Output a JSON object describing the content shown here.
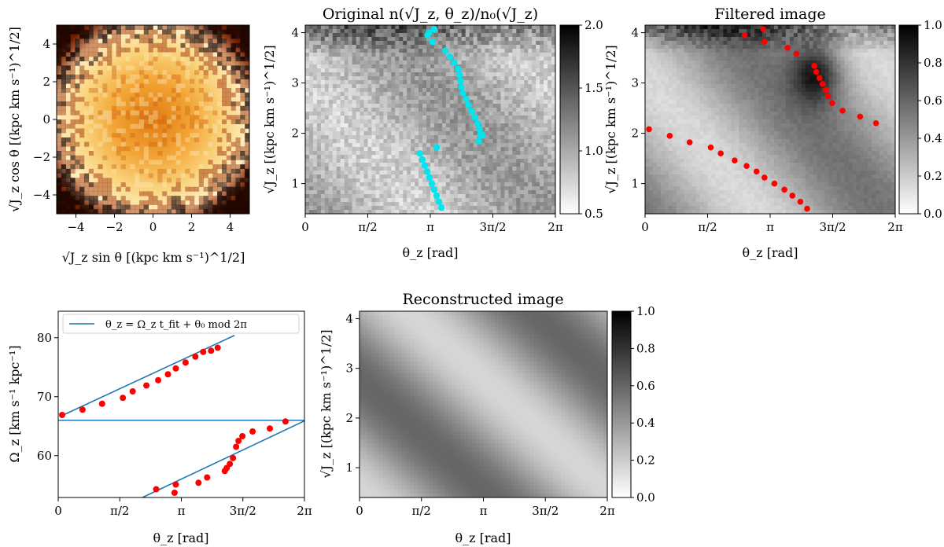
{
  "figure": {
    "panel_a": {
      "xlabel": "√J_z sin θ [(kpc km s⁻¹)^1/2]",
      "ylabel": "√J_z cos θ [(kpc km s⁻¹)^1/2]",
      "xticks": [
        "−4",
        "−2",
        "0",
        "2",
        "4"
      ],
      "yticks": [
        "4",
        "2",
        "0",
        "−2",
        "−4"
      ]
    },
    "panel_b": {
      "title": "Original n(√J_z, θ_z)/n₀(√J_z)",
      "xlabel": "θ_z [rad]",
      "ylabel": "√J_z [(kpc km s⁻¹)^1/2]",
      "xticks": [
        "0",
        "π/2",
        "π",
        "3π/2",
        "2π"
      ],
      "yticks": [
        "1",
        "2",
        "3",
        "4"
      ],
      "cbar_ticks": [
        "2.0",
        "1.5",
        "1.0",
        "0.5"
      ]
    },
    "panel_c": {
      "title": "Filtered image",
      "xlabel": "θ_z [rad]",
      "ylabel": "√J_z [(kpc km s⁻¹)^1/2]",
      "xticks": [
        "0",
        "π/2",
        "π",
        "3π/2",
        "2π"
      ],
      "yticks": [
        "1",
        "2",
        "3",
        "4"
      ],
      "cbar_ticks": [
        "1.0",
        "0.8",
        "0.6",
        "0.4",
        "0.2",
        "0.0"
      ]
    },
    "panel_d": {
      "xlabel": "θ_z [rad]",
      "ylabel": "Ω_z [km s⁻¹ kpc⁻¹]",
      "legend": "θ_z = Ω_z t_fit + θ₀ mod 2π",
      "xticks": [
        "0",
        "π/2",
        "π",
        "3π/2",
        "2π"
      ],
      "yticks": [
        "80",
        "70",
        "60"
      ]
    },
    "panel_e": {
      "title": "Reconstructed image",
      "xlabel": "θ_z [rad]",
      "ylabel": "√J_z [(kpc km s⁻¹)^1/2]",
      "xticks": [
        "0",
        "π/2",
        "π",
        "3π/2",
        "2π"
      ],
      "yticks": [
        "1",
        "2",
        "3",
        "4"
      ],
      "cbar_ticks": [
        "1.0",
        "0.8",
        "0.6",
        "0.4",
        "0.2",
        "0.0"
      ]
    }
  },
  "chart_data": [
    {
      "type": "heatmap",
      "name": "face-on density map",
      "xlim": [
        -5,
        5
      ],
      "ylim": [
        -5,
        5
      ],
      "xlabel": "√J_z sin θ [(kpc km s⁻¹)^1/2]",
      "ylabel": "√J_z cos θ [(kpc km s⁻¹)^1/2]",
      "colormap": "afmhot"
    },
    {
      "type": "heatmap",
      "name": "original",
      "title": "Original n(√J_z, θ_z)/n₀(√J_z)",
      "xlim": [
        0,
        6.2832
      ],
      "ylim": [
        0.4,
        4.15
      ],
      "clim": [
        0.5,
        2.0
      ],
      "overlay_points_color": "#00e5ee",
      "overlay_points": [
        [
          3.07,
          3.95
        ],
        [
          3.24,
          4.07
        ],
        [
          3.11,
          4.0
        ],
        [
          3.2,
          3.82
        ],
        [
          3.52,
          3.64
        ],
        [
          3.64,
          3.52
        ],
        [
          3.74,
          3.4
        ],
        [
          3.84,
          3.28
        ],
        [
          3.88,
          3.16
        ],
        [
          3.9,
          3.04
        ],
        [
          3.92,
          2.92
        ],
        [
          3.96,
          2.8
        ],
        [
          4.04,
          2.68
        ],
        [
          4.1,
          2.56
        ],
        [
          4.18,
          2.44
        ],
        [
          4.26,
          2.32
        ],
        [
          4.33,
          2.2
        ],
        [
          4.38,
          2.08
        ],
        [
          4.4,
          1.96
        ],
        [
          4.45,
          1.96
        ],
        [
          4.36,
          1.84
        ],
        [
          3.3,
          1.72
        ],
        [
          2.88,
          1.6
        ],
        [
          2.94,
          1.48
        ],
        [
          3.0,
          1.36
        ],
        [
          3.06,
          1.24
        ],
        [
          3.12,
          1.12
        ],
        [
          3.18,
          1.0
        ],
        [
          3.24,
          0.88
        ],
        [
          3.3,
          0.76
        ],
        [
          3.36,
          0.64
        ],
        [
          3.42,
          0.52
        ]
      ]
    },
    {
      "type": "heatmap",
      "name": "filtered",
      "title": "Filtered image",
      "xlim": [
        0,
        6.2832
      ],
      "ylim": [
        0.4,
        4.15
      ],
      "clim": [
        0.0,
        1.0
      ],
      "overlay_points_color": "#ff0000",
      "overlay_points": [
        [
          2.97,
          4.07
        ],
        [
          2.5,
          3.95
        ],
        [
          3.0,
          3.82
        ],
        [
          3.58,
          3.7
        ],
        [
          3.8,
          3.58
        ],
        [
          4.25,
          3.34
        ],
        [
          4.3,
          3.22
        ],
        [
          4.38,
          3.1
        ],
        [
          4.46,
          2.98
        ],
        [
          4.54,
          2.86
        ],
        [
          4.6,
          2.74
        ],
        [
          4.7,
          2.6
        ],
        [
          4.96,
          2.45
        ],
        [
          5.4,
          2.33
        ],
        [
          5.8,
          2.2
        ],
        [
          0.1,
          2.08
        ],
        [
          0.62,
          1.95
        ],
        [
          1.12,
          1.82
        ],
        [
          1.65,
          1.72
        ],
        [
          1.9,
          1.6
        ],
        [
          2.25,
          1.46
        ],
        [
          2.55,
          1.35
        ],
        [
          2.8,
          1.24
        ],
        [
          3.0,
          1.12
        ],
        [
          3.25,
          1.0
        ],
        [
          3.5,
          0.88
        ],
        [
          3.7,
          0.76
        ],
        [
          3.9,
          0.64
        ],
        [
          4.07,
          0.5
        ]
      ]
    },
    {
      "type": "scatter",
      "name": "frequency fit",
      "xlim": [
        0,
        6.2832
      ],
      "ylim": [
        52.9,
        84.5
      ],
      "xlabel": "θ_z [rad]",
      "ylabel": "Ω_z [km s⁻¹ kpc⁻¹]",
      "series": [
        {
          "name": "θ_z = Ω_z t_fit + θ₀ mod 2π",
          "kind": "line",
          "color": "#1f77b4",
          "segments": [
            [
              [
                0.0,
                66.0
              ],
              [
                6.2832,
                66.0
              ]
            ],
            [
              [
                0.1,
                66.8
              ],
              [
                4.5,
                80.4
              ]
            ],
            [
              [
                2.15,
                52.9
              ],
              [
                6.2832,
                65.9
              ]
            ]
          ]
        },
        {
          "name": "points",
          "kind": "scatter",
          "color": "#ff0000",
          "x": [
            0.1,
            0.62,
            1.12,
            1.65,
            1.9,
            2.25,
            2.55,
            2.8,
            3.0,
            3.25,
            3.5,
            3.7,
            3.9,
            4.07,
            2.5,
            2.97,
            3.0,
            3.58,
            3.8,
            4.25,
            4.3,
            4.38,
            4.46,
            4.54,
            4.6,
            4.7,
            4.96,
            5.4,
            5.8
          ],
          "y": [
            66.9,
            67.8,
            68.8,
            69.8,
            70.9,
            71.9,
            72.8,
            73.8,
            74.8,
            75.8,
            76.8,
            77.6,
            77.8,
            78.3,
            54.3,
            53.7,
            55.1,
            55.4,
            56.3,
            57.4,
            57.9,
            58.6,
            59.6,
            61.5,
            62.5,
            63.3,
            64.1,
            64.6,
            65.8
          ]
        }
      ]
    },
    {
      "type": "heatmap",
      "name": "reconstructed",
      "title": "Reconstructed image",
      "xlim": [
        0,
        6.2832
      ],
      "ylim": [
        0.4,
        4.15
      ],
      "clim": [
        0.0,
        1.0
      ]
    }
  ]
}
